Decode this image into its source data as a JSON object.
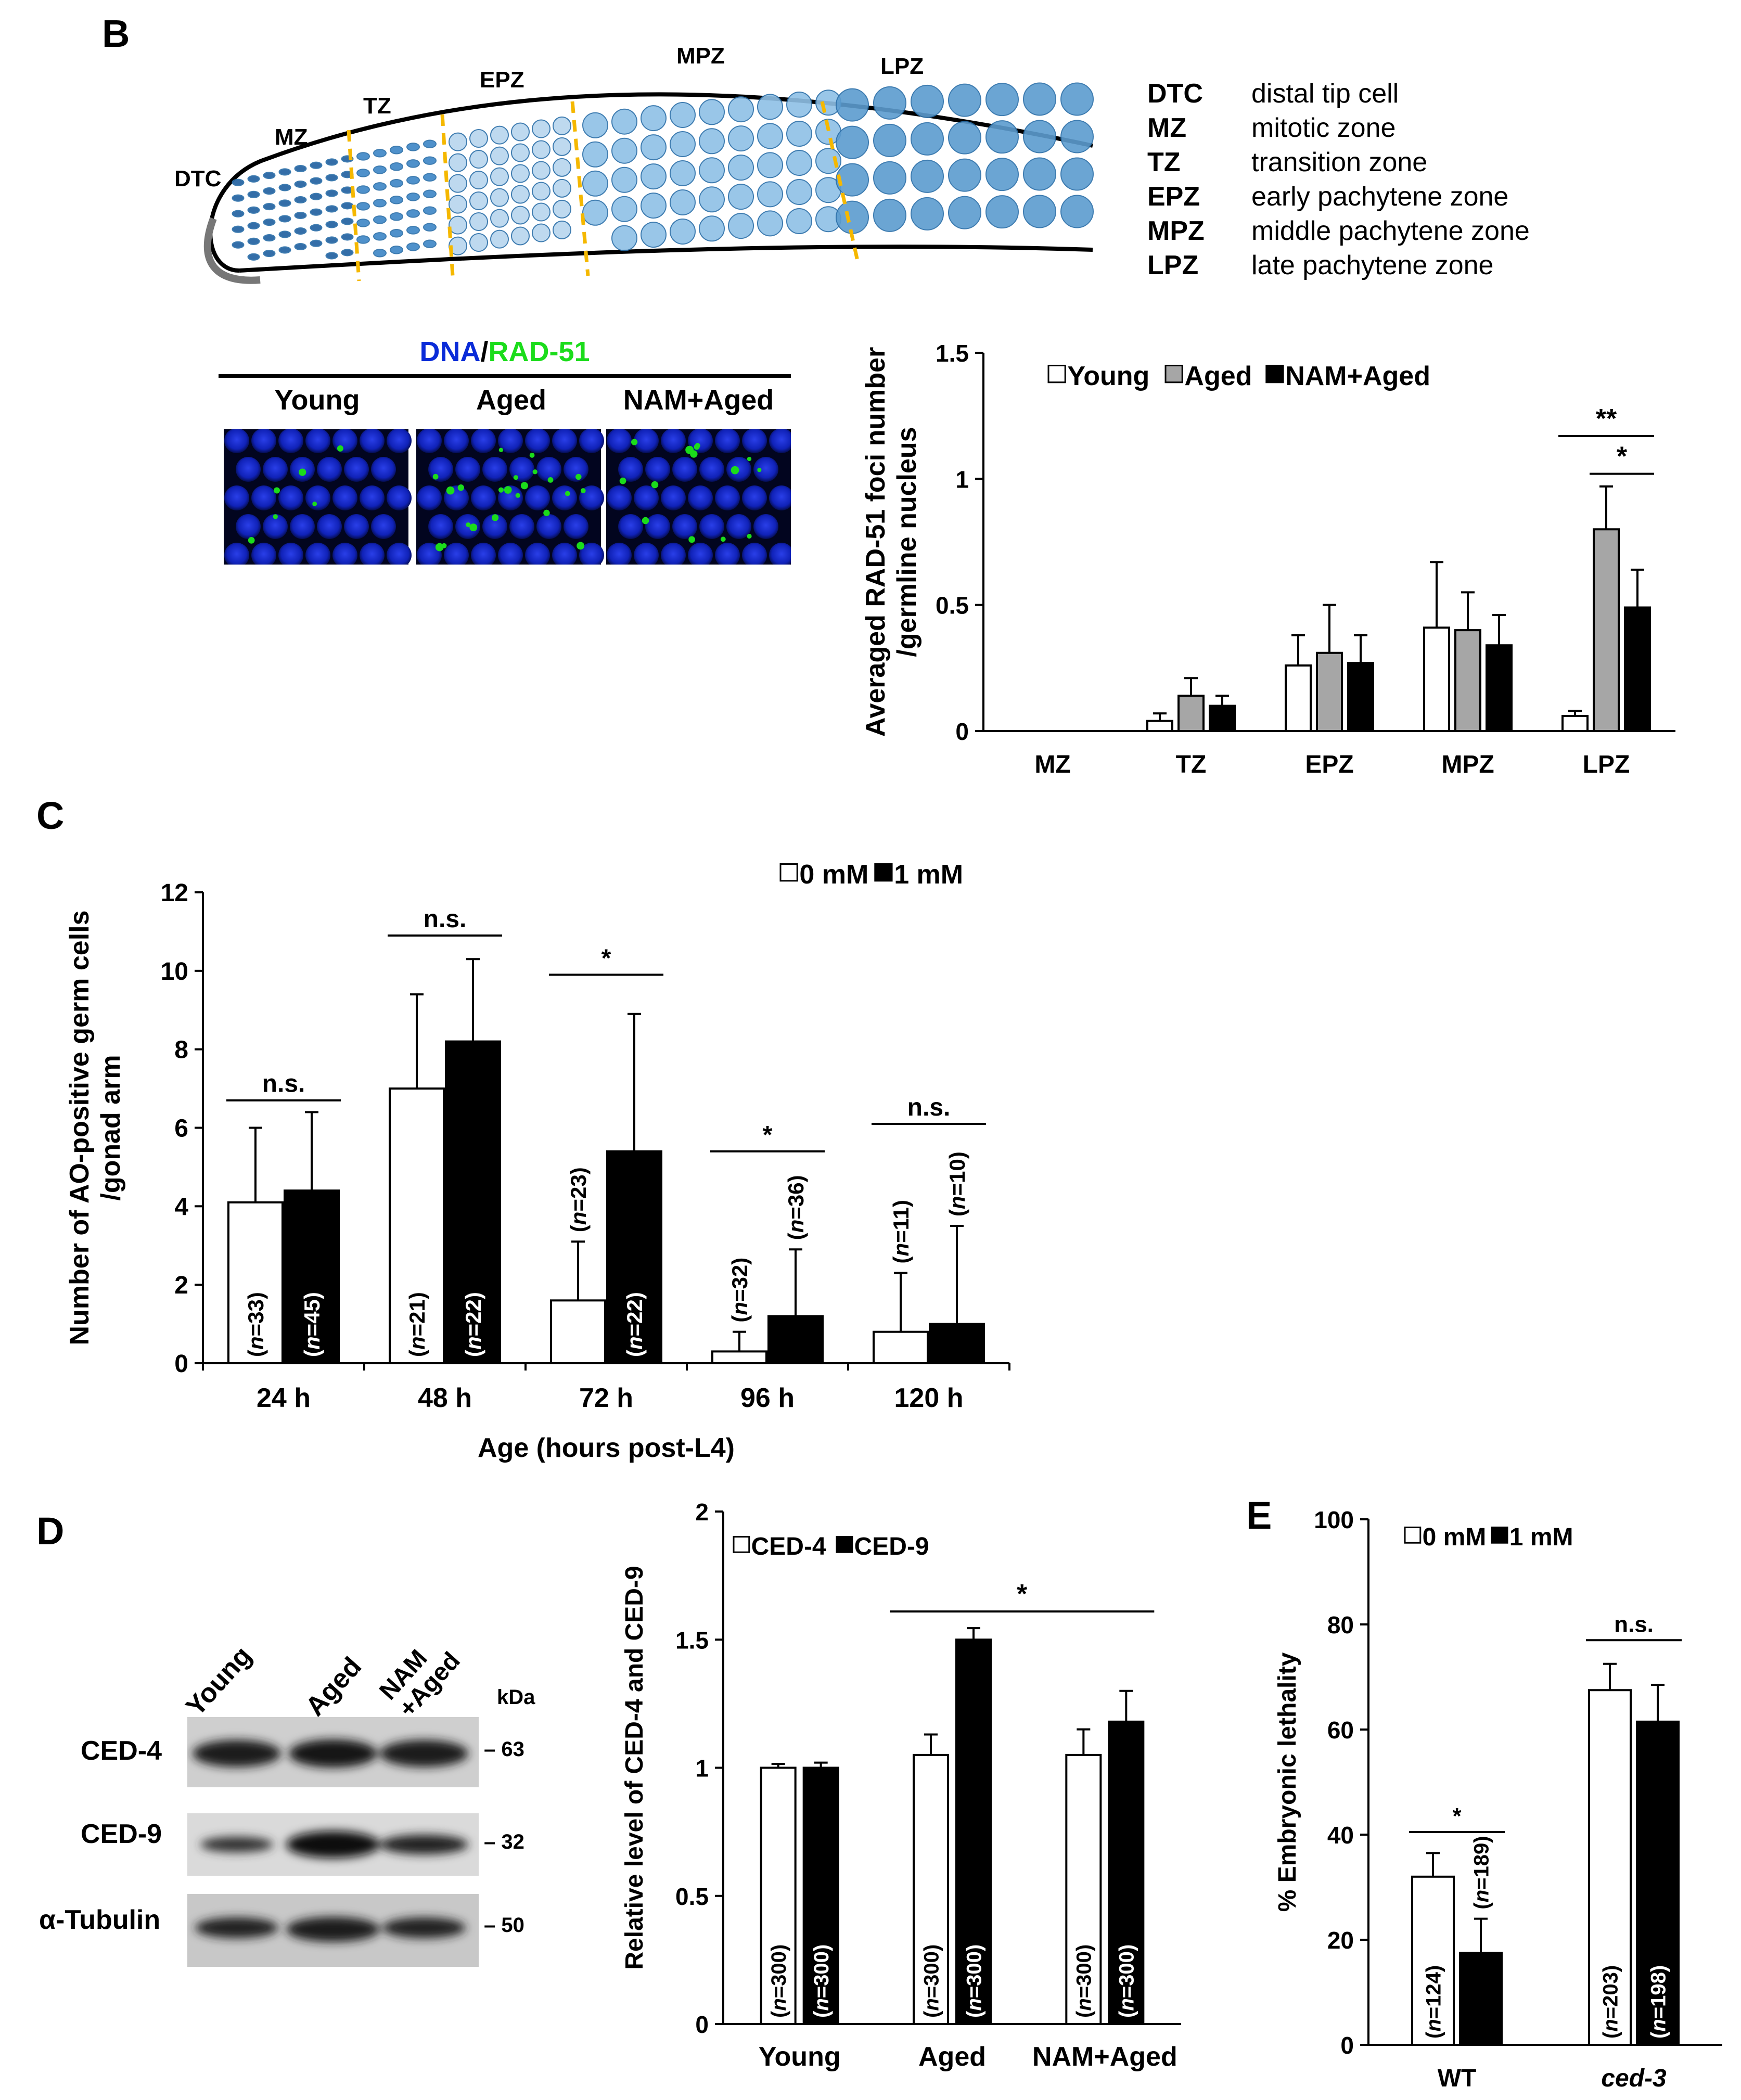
{
  "panel_B": {
    "label": "B",
    "schematic": {
      "zones": [
        "DTC",
        "MZ",
        "TZ",
        "EPZ",
        "MPZ",
        "LPZ"
      ],
      "legend": [
        {
          "abbr": "DTC",
          "name": "distal tip cell"
        },
        {
          "abbr": "MZ",
          "name": "mitotic zone"
        },
        {
          "abbr": "TZ",
          "name": "transition zone"
        },
        {
          "abbr": "EPZ",
          "name": "early pachytene zone"
        },
        {
          "abbr": "MPZ",
          "name": "middle pachytene zone"
        },
        {
          "abbr": "LPZ",
          "name": "late pachytene zone"
        }
      ]
    },
    "micrograph": {
      "stain_dna": "DNA",
      "stain_sep": "/",
      "stain_rad": "RAD-51",
      "columns": [
        "Young",
        "Aged",
        "NAM+Aged"
      ],
      "dna_color": "#0a2bd8",
      "rad_color": "#1bdc1b"
    }
  },
  "panel_C": {
    "label": "C"
  },
  "panel_D": {
    "label": "D",
    "western": {
      "lanes": [
        "Young",
        "Aged",
        "NAM\n+Aged"
      ],
      "kda_label": "kDa",
      "rows": [
        {
          "protein": "CED-4",
          "kda": "63"
        },
        {
          "protein": "CED-9",
          "kda": "32"
        },
        {
          "protein": "α-Tubulin",
          "kda": "50"
        }
      ]
    }
  },
  "panel_E": {
    "label": "E"
  },
  "chart_data": [
    {
      "id": "B",
      "type": "bar",
      "ylabel": "Averaged RAD-51 foci number /germline nucleus",
      "yticks": [
        "0",
        "0.5",
        "1",
        "1.5"
      ],
      "ylim": [
        0,
        1.5
      ],
      "categories": [
        "MZ",
        "TZ",
        "EPZ",
        "MPZ",
        "LPZ"
      ],
      "series": [
        {
          "name": "Young",
          "color": "#ffffff",
          "values": [
            0,
            0.04,
            0.26,
            0.41,
            0.06
          ],
          "errors": [
            0,
            0.03,
            0.12,
            0.26,
            0.02
          ]
        },
        {
          "name": "Aged",
          "color": "#a6a6a6",
          "values": [
            0,
            0.14,
            0.31,
            0.4,
            0.8
          ],
          "errors": [
            0,
            0.07,
            0.19,
            0.15,
            0.17
          ]
        },
        {
          "name": "NAM+Aged",
          "color": "#000000",
          "values": [
            0,
            0.1,
            0.27,
            0.34,
            0.49
          ],
          "errors": [
            0,
            0.04,
            0.11,
            0.12,
            0.15
          ]
        }
      ],
      "significance": [
        "**",
        "*"
      ],
      "legend_position": "top"
    },
    {
      "id": "C",
      "type": "bar",
      "xlabel": "Age (hours post-L4)",
      "ylabel": "Number of AO-positive germ cells /gonad arm",
      "yticks": [
        "0",
        "2",
        "4",
        "6",
        "8",
        "10",
        "12"
      ],
      "ylim": [
        0,
        12
      ],
      "categories": [
        "24 h",
        "48 h",
        "72 h",
        "96 h",
        "120 h"
      ],
      "series": [
        {
          "name": "0 mM",
          "color": "#ffffff",
          "values": [
            4.1,
            7.0,
            1.6,
            0.3,
            0.8
          ],
          "errors": [
            1.9,
            2.4,
            1.5,
            0.5,
            1.5
          ],
          "n": [
            "33",
            "21",
            "23",
            "32",
            "11"
          ]
        },
        {
          "name": "1 mM",
          "color": "#000000",
          "values": [
            4.4,
            8.2,
            5.4,
            1.2,
            1.0
          ],
          "errors": [
            2.0,
            2.1,
            3.5,
            1.7,
            2.5
          ],
          "n": [
            "45",
            "22",
            "22",
            "36",
            "10"
          ]
        }
      ],
      "significance": [
        "n.s.",
        "n.s.",
        "*",
        "*",
        "n.s."
      ],
      "legend_position": "top-right"
    },
    {
      "id": "D",
      "type": "bar",
      "ylabel": "Relative level of CED-4 and CED-9",
      "yticks": [
        "0",
        "0.5",
        "1",
        "1.5",
        "2"
      ],
      "ylim": [
        0,
        2
      ],
      "categories": [
        "Young",
        "Aged",
        "NAM+Aged"
      ],
      "series": [
        {
          "name": "CED-4",
          "color": "#ffffff",
          "values": [
            1.0,
            1.05,
            1.05
          ],
          "errors": [
            0.015,
            0.08,
            0.1
          ],
          "n": [
            "300",
            "300",
            "300"
          ]
        },
        {
          "name": "CED-9",
          "color": "#000000",
          "values": [
            1.0,
            1.5,
            1.18
          ],
          "errors": [
            0.02,
            0.045,
            0.12
          ],
          "n": [
            "300",
            "300",
            "300"
          ]
        }
      ],
      "significance": [
        "*"
      ],
      "legend_position": "top-left"
    },
    {
      "id": "E",
      "type": "bar",
      "ylabel": "% Embryonic lethality",
      "yticks": [
        "0",
        "20",
        "40",
        "60",
        "80",
        "100"
      ],
      "ylim": [
        0,
        100
      ],
      "categories": [
        "WT",
        "ced-3"
      ],
      "series": [
        {
          "name": "0 mM",
          "color": "#ffffff",
          "values": [
            32,
            67.5
          ],
          "errors": [
            4.5,
            5
          ],
          "n": [
            "124",
            "203"
          ]
        },
        {
          "name": "1 mM",
          "color": "#000000",
          "values": [
            17.5,
            61.5
          ],
          "errors": [
            6.5,
            7
          ],
          "n": [
            "189",
            "198"
          ]
        }
      ],
      "significance": [
        "*",
        "n.s."
      ],
      "legend_position": "top-left"
    }
  ]
}
